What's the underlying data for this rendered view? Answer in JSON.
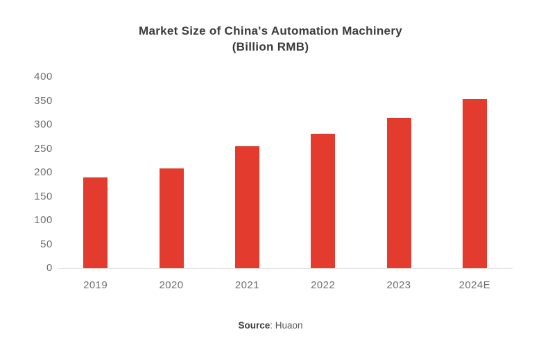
{
  "page": {
    "title_line1": "Market Size of China's Automation Machinery",
    "title_line2": "(Billion RMB)",
    "source_label": "Source",
    "source_rest": ": Huaon"
  },
  "colors": {
    "background": "#FFFFFF",
    "bar": "#E33B2E",
    "title_text": "#3B3B3B",
    "axis_text": "#6F6F6F",
    "axis_line": "#E3E3E3",
    "source_text": "#5A5A5A"
  },
  "chart_data": {
    "type": "bar",
    "title": "Market Size of China's Automation Machinery",
    "subtitle": "(Billion RMB)",
    "categories": [
      "2019",
      "2020",
      "2021",
      "2022",
      "2023",
      "2024E"
    ],
    "values": [
      190,
      208,
      255,
      281,
      315,
      353
    ],
    "xlabel": "",
    "ylabel": "",
    "ylim": [
      0,
      400
    ],
    "yticks": [
      0,
      50,
      100,
      150,
      200,
      250,
      300,
      350,
      400
    ],
    "grid": false,
    "legend": "none",
    "bar_color": "#E33B2E",
    "source": "Source: Huaon"
  }
}
